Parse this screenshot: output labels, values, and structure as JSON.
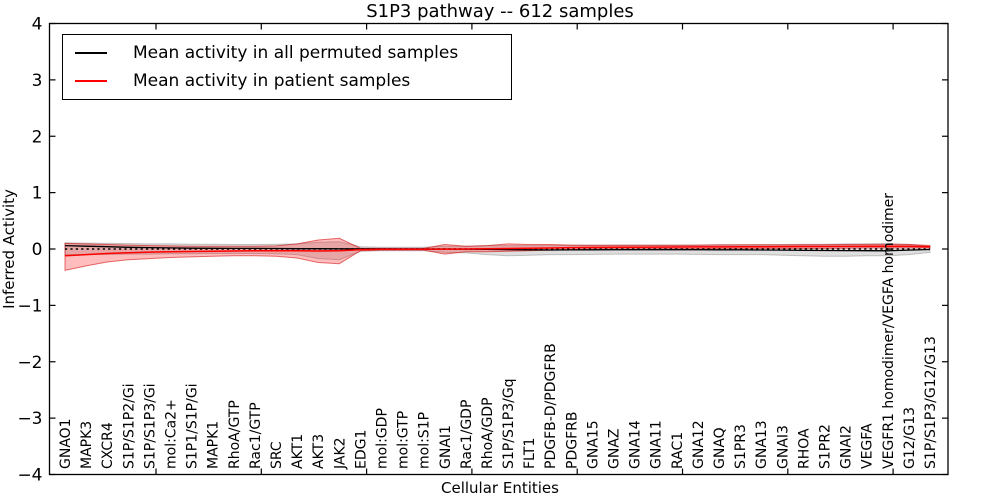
{
  "chart_data": {
    "type": "line",
    "title": "S1P3 pathway -- 612 samples",
    "xlabel": "Cellular Entities",
    "ylabel": "Inferred Activity",
    "ylim": [
      -4,
      4
    ],
    "yticks": [
      -4,
      -3,
      -2,
      -1,
      0,
      1,
      2,
      3,
      4
    ],
    "grid": false,
    "legend_position": "upper left",
    "zero_line": {
      "style": "dotted",
      "color": "#000000"
    },
    "categories": [
      "GNAO1",
      "MAPK3",
      "CXCR4",
      "S1P/S1P2/Gi",
      "S1P/S1P3/Gi",
      "mol:Ca2+",
      "S1P1/S1P/Gi",
      "MAPK1",
      "RhoA/GTP",
      "Rac1/GTP",
      "SRC",
      "AKT1",
      "AKT3",
      "JAK2",
      "EDG1",
      "mol:GDP",
      "mol:GTP",
      "mol:S1P",
      "GNAI1",
      "Rac1/GDP",
      "RhoA/GDP",
      "S1P/S1P3/Gq",
      "FLT1",
      "PDGFB-D/PDGFRB",
      "PDGFRB",
      "GNA15",
      "GNAZ",
      "GNA14",
      "GNA11",
      "RAC1",
      "GNA12",
      "GNAQ",
      "S1PR3",
      "GNA13",
      "GNAI3",
      "RHOA",
      "S1PR2",
      "GNAI2",
      "VEGFA",
      "VEGFR1 homodimer/VEGFA homodimer",
      "G12/G13",
      "S1P/S1P3/G12/G13"
    ],
    "series": [
      {
        "name": "Mean activity in all permuted samples",
        "color": "#000000",
        "values": [
          0.06,
          0.05,
          0.04,
          0.03,
          0.025,
          0.02,
          0.015,
          0.012,
          0.01,
          0.01,
          0.008,
          0.006,
          0.005,
          0.004,
          0.002,
          0.001,
          0.0,
          0.0,
          0.0,
          -0.002,
          -0.005,
          -0.01,
          -0.015,
          -0.018,
          -0.016,
          -0.014,
          -0.012,
          -0.012,
          -0.012,
          -0.012,
          -0.013,
          -0.014,
          -0.015,
          -0.018,
          -0.02,
          -0.024,
          -0.026,
          -0.028,
          -0.03,
          -0.032,
          -0.02,
          -0.008
        ]
      },
      {
        "name": "Mean activity in patient samples",
        "color": "#ff0000",
        "values": [
          -0.12,
          -0.1,
          -0.08,
          -0.065,
          -0.055,
          -0.05,
          -0.045,
          -0.04,
          -0.035,
          -0.032,
          -0.03,
          -0.032,
          -0.035,
          -0.03,
          -0.01,
          -0.006,
          -0.005,
          -0.004,
          -0.002,
          0.0,
          0.004,
          0.008,
          0.013,
          0.018,
          0.024,
          0.028,
          0.03,
          0.032,
          0.034,
          0.035,
          0.037,
          0.038,
          0.04,
          0.041,
          0.042,
          0.044,
          0.045,
          0.047,
          0.049,
          0.05,
          0.05,
          0.04
        ]
      }
    ],
    "bands": [
      {
        "name": "permuted-samples-range",
        "fill": "rgba(128,128,128,0.25)",
        "edge": "rgba(128,128,128,0.45)",
        "lower": [
          -0.1,
          -0.1,
          -0.095,
          -0.09,
          -0.09,
          -0.085,
          -0.085,
          -0.08,
          -0.08,
          -0.08,
          -0.085,
          -0.1,
          -0.17,
          -0.19,
          -0.04,
          -0.03,
          -0.03,
          -0.03,
          -0.06,
          -0.07,
          -0.1,
          -0.12,
          -0.11,
          -0.1,
          -0.1,
          -0.095,
          -0.09,
          -0.09,
          -0.09,
          -0.09,
          -0.095,
          -0.1,
          -0.1,
          -0.1,
          -0.11,
          -0.12,
          -0.13,
          -0.13,
          -0.12,
          -0.12,
          -0.1,
          -0.06
        ],
        "upper": [
          0.11,
          0.105,
          0.1,
          0.095,
          0.09,
          0.09,
          0.085,
          0.085,
          0.08,
          0.08,
          0.085,
          0.09,
          0.12,
          0.13,
          0.04,
          0.03,
          0.03,
          0.03,
          0.05,
          0.05,
          0.06,
          0.06,
          0.06,
          0.06,
          0.065,
          0.065,
          0.07,
          0.07,
          0.07,
          0.07,
          0.07,
          0.075,
          0.075,
          0.08,
          0.08,
          0.085,
          0.085,
          0.09,
          0.09,
          0.095,
          0.08,
          0.05
        ]
      },
      {
        "name": "patient-samples-range",
        "fill": "rgba(255,0,0,0.26)",
        "edge": "rgba(208,0,0,0.55)",
        "lower": [
          -0.38,
          -0.3,
          -0.23,
          -0.19,
          -0.17,
          -0.15,
          -0.14,
          -0.13,
          -0.12,
          -0.12,
          -0.13,
          -0.16,
          -0.24,
          -0.26,
          -0.03,
          -0.02,
          -0.02,
          -0.02,
          -0.09,
          -0.05,
          -0.05,
          -0.04,
          -0.03,
          -0.02,
          -0.01,
          0.0,
          0.0,
          0.0,
          0.005,
          0.005,
          0.005,
          0.01,
          0.01,
          0.01,
          0.01,
          0.01,
          0.01,
          0.015,
          0.02,
          0.02,
          0.02,
          0.02
        ],
        "upper": [
          0.1,
          0.09,
          0.08,
          0.07,
          0.06,
          0.055,
          0.05,
          0.05,
          0.05,
          0.05,
          0.055,
          0.09,
          0.16,
          0.19,
          0.015,
          0.01,
          0.01,
          0.01,
          0.08,
          0.05,
          0.06,
          0.09,
          0.08,
          0.08,
          0.07,
          0.065,
          0.065,
          0.066,
          0.068,
          0.068,
          0.07,
          0.072,
          0.072,
          0.073,
          0.073,
          0.076,
          0.077,
          0.08,
          0.082,
          0.085,
          0.082,
          0.062
        ]
      }
    ]
  },
  "legend": {
    "items": [
      {
        "label": "Mean activity in all permuted samples",
        "color": "#000000"
      },
      {
        "label": "Mean activity in patient samples",
        "color": "#ff0000"
      }
    ]
  }
}
